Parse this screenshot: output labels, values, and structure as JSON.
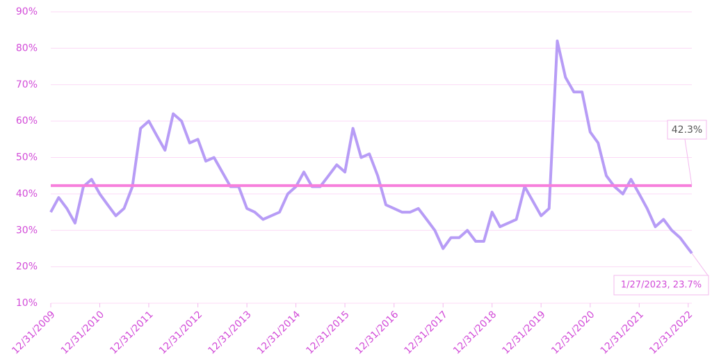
{
  "chart_data": {
    "type": "line",
    "x": [
      "12/31/2009",
      "2/28/2010",
      "4/30/2010",
      "6/30/2010",
      "8/31/2010",
      "10/31/2010",
      "12/31/2010",
      "2/28/2011",
      "4/30/2011",
      "6/30/2011",
      "8/31/2011",
      "10/31/2011",
      "12/31/2011",
      "2/29/2012",
      "4/30/2012",
      "6/30/2012",
      "8/31/2012",
      "10/31/2012",
      "12/31/2012",
      "2/28/2013",
      "4/30/2013",
      "6/30/2013",
      "8/31/2013",
      "10/31/2013",
      "12/31/2013",
      "2/28/2014",
      "4/30/2014",
      "6/30/2014",
      "8/31/2014",
      "10/31/2014",
      "12/31/2014",
      "2/28/2015",
      "4/30/2015",
      "6/30/2015",
      "8/31/2015",
      "10/31/2015",
      "12/31/2015",
      "2/29/2016",
      "4/30/2016",
      "6/30/2016",
      "8/31/2016",
      "10/31/2016",
      "12/31/2016",
      "2/28/2017",
      "4/30/2017",
      "6/30/2017",
      "8/31/2017",
      "10/31/2017",
      "12/31/2017",
      "2/28/2018",
      "4/30/2018",
      "6/30/2018",
      "8/31/2018",
      "10/31/2018",
      "12/31/2018",
      "2/28/2019",
      "4/30/2019",
      "6/30/2019",
      "8/31/2019",
      "10/31/2019",
      "12/31/2019",
      "2/29/2020",
      "4/30/2020",
      "6/30/2020",
      "8/31/2020",
      "10/31/2020",
      "12/31/2020",
      "2/28/2021",
      "4/30/2021",
      "6/30/2021",
      "8/31/2021",
      "10/31/2021",
      "12/31/2021",
      "2/28/2022",
      "4/30/2022",
      "6/30/2022",
      "8/31/2022",
      "10/31/2022",
      "12/31/2022",
      "1/27/2023"
    ],
    "series": [
      {
        "color": "#b79cf6",
        "values": [
          35,
          39,
          36,
          32,
          42,
          44,
          40,
          37,
          34,
          36,
          42,
          58,
          60,
          56,
          52,
          62,
          60,
          54,
          55,
          49,
          50,
          46,
          42,
          42,
          36,
          35,
          33,
          34,
          35,
          40,
          42,
          46,
          42,
          42,
          45,
          48,
          46,
          58,
          50,
          51,
          45,
          37,
          36,
          35,
          35,
          36,
          33,
          30,
          25,
          28,
          28,
          30,
          27,
          27,
          35,
          31,
          32,
          33,
          42,
          38,
          34,
          36,
          82,
          72,
          68,
          68,
          57,
          54,
          45,
          42,
          40,
          44,
          40,
          36,
          31,
          33,
          30,
          28,
          25,
          23.7
        ]
      }
    ],
    "xlim": [
      "12/31/2009",
      "1/27/2023"
    ],
    "xticks": [
      "12/31/2009",
      "12/31/2010",
      "12/31/2011",
      "12/31/2012",
      "12/31/2013",
      "12/31/2014",
      "12/31/2015",
      "12/31/2016",
      "12/31/2017",
      "12/31/2018",
      "12/31/2019",
      "12/31/2020",
      "12/31/2021",
      "12/31/2022"
    ],
    "ylim": [
      10,
      90
    ],
    "yticks": [
      {
        "value": 10,
        "label": "10%"
      },
      {
        "value": 20,
        "label": "20%"
      },
      {
        "value": 30,
        "label": "30%"
      },
      {
        "value": 40,
        "label": "40%"
      },
      {
        "value": 50,
        "label": "50%"
      },
      {
        "value": 60,
        "label": "60%"
      },
      {
        "value": 70,
        "label": "70%"
      },
      {
        "value": 80,
        "label": "80%"
      },
      {
        "value": 90,
        "label": "90%"
      }
    ],
    "grid": true,
    "reference_line": {
      "value": 42.3,
      "label": "42.3%",
      "color": "#f77fdc"
    },
    "last_point_label": {
      "x": "1/27/2023",
      "value": 23.7,
      "label": "1/27/2023, 23.7%"
    }
  }
}
